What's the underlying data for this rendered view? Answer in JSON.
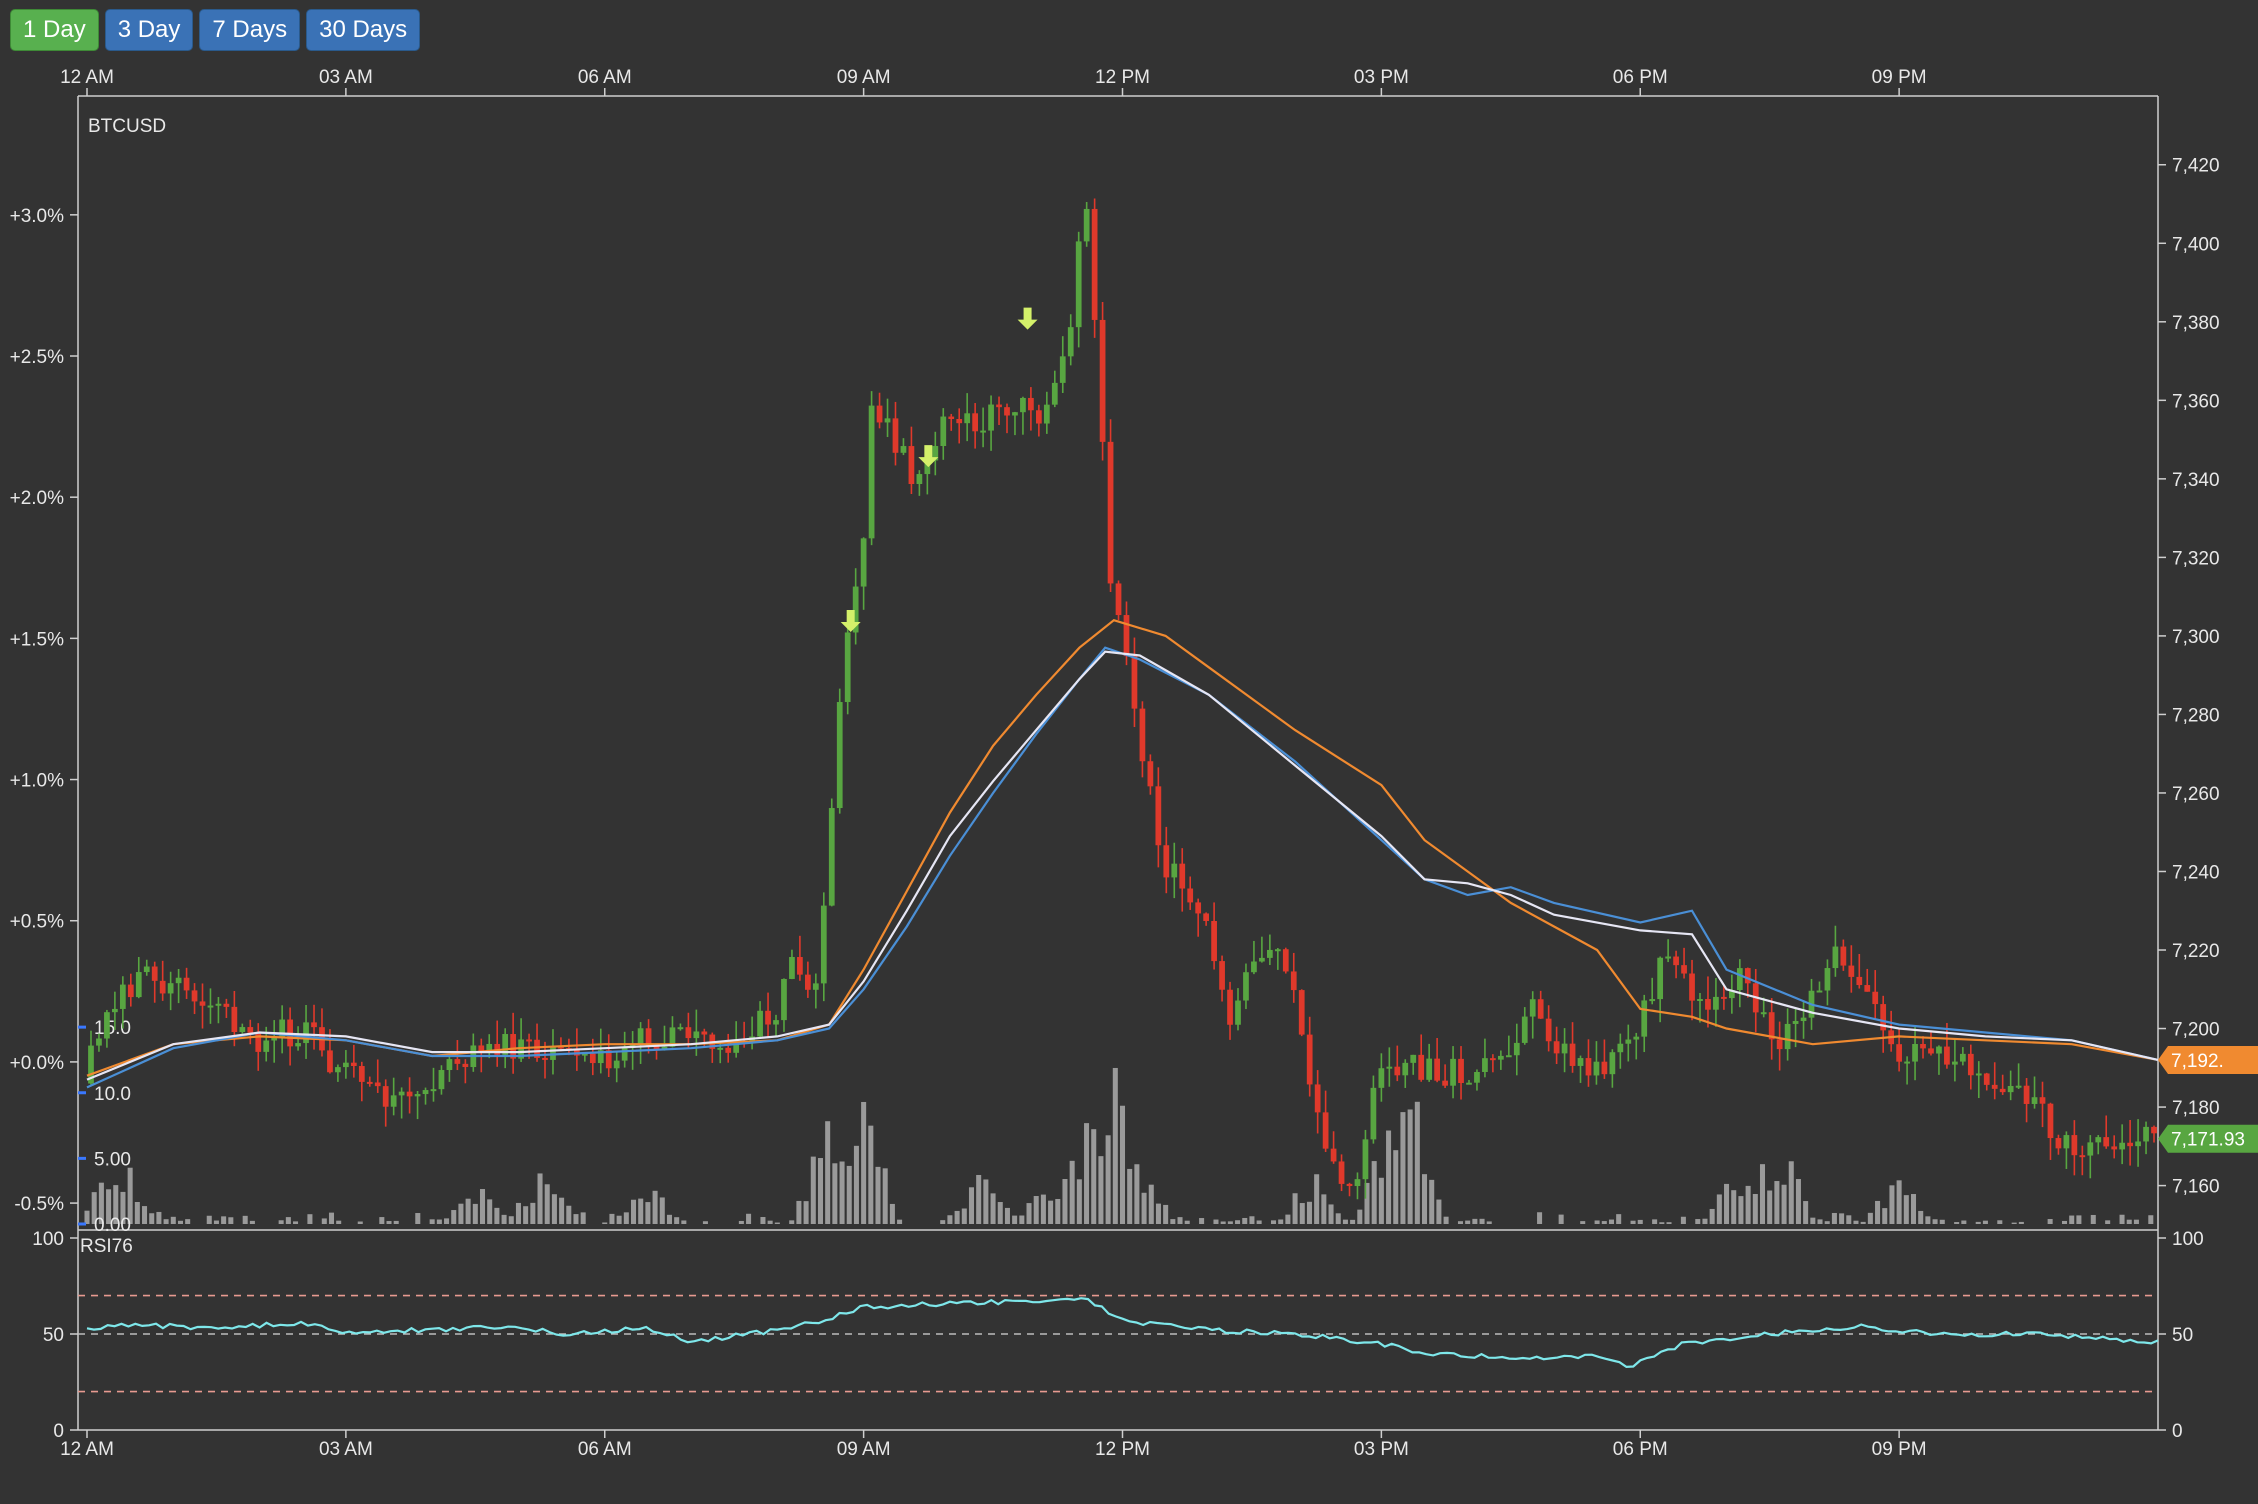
{
  "range_buttons": [
    {
      "label": "1 Day",
      "active": true
    },
    {
      "label": "3 Day",
      "active": false
    },
    {
      "label": "7 Days",
      "active": false
    },
    {
      "label": "30 Days",
      "active": false
    }
  ],
  "colors": {
    "background": "#333333",
    "up": "#58a641",
    "down": "#e0392b",
    "volume": "#9a9a9a",
    "ma_orange": "#f08a30",
    "ma_white": "#e6e6f4",
    "ma_blue": "#4a8fd6",
    "rsi_line": "#7ee7ea",
    "rsi_band": "#e79a90",
    "marker": "#d4f06a",
    "tag_orange": "#f08a30",
    "tag_green": "#58a641"
  },
  "chart_data": [
    {
      "type": "candlestick",
      "title": "BTCUSD",
      "x_ticks": [
        "12 AM",
        "03 AM",
        "06 AM",
        "09 AM",
        "12 PM",
        "03 PM",
        "06 PM",
        "09 PM"
      ],
      "x_range_hours": [
        0,
        24
      ],
      "y_right_ticks": [
        "7,160",
        "7,180",
        "7,200",
        "7,220",
        "7,240",
        "7,260",
        "7,280",
        "7,300",
        "7,320",
        "7,340",
        "7,360",
        "7,380",
        "7,400",
        "7,420"
      ],
      "y_left_ticks": [
        "-0.5%",
        "+0.0%",
        "+0.5%",
        "+1.0%",
        "+1.5%",
        "+2.0%",
        "+2.5%",
        "+3.0%"
      ],
      "y_right_range": [
        7152,
        7437
      ],
      "volume_ticks": [
        "0.00",
        "5.00",
        "10.0",
        "15.0"
      ],
      "volume_range": [
        0,
        16
      ],
      "price_tags": [
        {
          "label": "7,192.",
          "price": 7192,
          "color": "orange"
        },
        {
          "label": "7,171.93",
          "price": 7171.93,
          "color": "green"
        }
      ],
      "anchors": [
        {
          "t": 0.0,
          "p": 7186
        },
        {
          "t": 0.3,
          "p": 7206
        },
        {
          "t": 0.7,
          "p": 7214
        },
        {
          "t": 1.0,
          "p": 7212
        },
        {
          "t": 1.5,
          "p": 7207
        },
        {
          "t": 2.0,
          "p": 7197
        },
        {
          "t": 2.5,
          "p": 7200
        },
        {
          "t": 3.0,
          "p": 7190
        },
        {
          "t": 3.5,
          "p": 7184
        },
        {
          "t": 4.0,
          "p": 7185
        },
        {
          "t": 4.5,
          "p": 7193
        },
        {
          "t": 5.0,
          "p": 7196
        },
        {
          "t": 5.5,
          "p": 7192
        },
        {
          "t": 6.0,
          "p": 7193
        },
        {
          "t": 6.5,
          "p": 7197
        },
        {
          "t": 7.0,
          "p": 7199
        },
        {
          "t": 7.6,
          "p": 7197
        },
        {
          "t": 8.0,
          "p": 7203
        },
        {
          "t": 8.2,
          "p": 7215
        },
        {
          "t": 8.5,
          "p": 7208
        },
        {
          "t": 8.65,
          "p": 7248
        },
        {
          "t": 8.8,
          "p": 7296
        },
        {
          "t": 9.0,
          "p": 7313
        },
        {
          "t": 9.15,
          "p": 7360
        },
        {
          "t": 9.4,
          "p": 7351
        },
        {
          "t": 9.7,
          "p": 7338
        },
        {
          "t": 10.0,
          "p": 7358
        },
        {
          "t": 10.4,
          "p": 7355
        },
        {
          "t": 10.8,
          "p": 7360
        },
        {
          "t": 11.1,
          "p": 7355
        },
        {
          "t": 11.4,
          "p": 7372
        },
        {
          "t": 11.6,
          "p": 7417
        },
        {
          "t": 11.75,
          "p": 7372
        },
        {
          "t": 11.9,
          "p": 7317
        },
        {
          "t": 12.2,
          "p": 7283
        },
        {
          "t": 12.5,
          "p": 7239
        },
        {
          "t": 12.8,
          "p": 7237
        },
        {
          "t": 13.0,
          "p": 7230
        },
        {
          "t": 13.3,
          "p": 7199
        },
        {
          "t": 13.6,
          "p": 7222
        },
        {
          "t": 13.9,
          "p": 7218
        },
        {
          "t": 14.2,
          "p": 7190
        },
        {
          "t": 14.4,
          "p": 7168
        },
        {
          "t": 14.8,
          "p": 7159
        },
        {
          "t": 15.0,
          "p": 7188
        },
        {
          "t": 15.3,
          "p": 7193
        },
        {
          "t": 15.6,
          "p": 7190
        },
        {
          "t": 16.0,
          "p": 7188
        },
        {
          "t": 16.5,
          "p": 7195
        },
        {
          "t": 16.8,
          "p": 7207
        },
        {
          "t": 17.2,
          "p": 7193
        },
        {
          "t": 17.6,
          "p": 7189
        },
        {
          "t": 18.0,
          "p": 7198
        },
        {
          "t": 18.3,
          "p": 7217
        },
        {
          "t": 18.8,
          "p": 7205
        },
        {
          "t": 19.2,
          "p": 7214
        },
        {
          "t": 19.6,
          "p": 7196
        },
        {
          "t": 19.9,
          "p": 7203
        },
        {
          "t": 20.3,
          "p": 7218
        },
        {
          "t": 20.7,
          "p": 7208
        },
        {
          "t": 21.0,
          "p": 7190
        },
        {
          "t": 21.5,
          "p": 7195
        },
        {
          "t": 22.0,
          "p": 7190
        },
        {
          "t": 22.6,
          "p": 7180
        },
        {
          "t": 23.0,
          "p": 7170
        },
        {
          "t": 23.5,
          "p": 7171
        }
      ],
      "ma_white_points": [
        {
          "t": 0,
          "p": 7187
        },
        {
          "t": 1,
          "p": 7196
        },
        {
          "t": 2,
          "p": 7199
        },
        {
          "t": 3,
          "p": 7198
        },
        {
          "t": 4,
          "p": 7194
        },
        {
          "t": 5,
          "p": 7194
        },
        {
          "t": 6,
          "p": 7195
        },
        {
          "t": 7,
          "p": 7196
        },
        {
          "t": 8,
          "p": 7198
        },
        {
          "t": 8.6,
          "p": 7201
        },
        {
          "t": 9,
          "p": 7212
        },
        {
          "t": 9.5,
          "p": 7230
        },
        {
          "t": 10,
          "p": 7249
        },
        {
          "t": 10.5,
          "p": 7263
        },
        {
          "t": 11,
          "p": 7276
        },
        {
          "t": 11.5,
          "p": 7289
        },
        {
          "t": 11.8,
          "p": 7296
        },
        {
          "t": 12.2,
          "p": 7295
        },
        {
          "t": 13,
          "p": 7285
        },
        {
          "t": 14,
          "p": 7267
        },
        {
          "t": 15,
          "p": 7249
        },
        {
          "t": 15.5,
          "p": 7238
        },
        {
          "t": 16,
          "p": 7237
        },
        {
          "t": 16.5,
          "p": 7234
        },
        {
          "t": 17,
          "p": 7229
        },
        {
          "t": 18,
          "p": 7225
        },
        {
          "t": 18.6,
          "p": 7224
        },
        {
          "t": 19,
          "p": 7210
        },
        {
          "t": 20,
          "p": 7204
        },
        {
          "t": 21,
          "p": 7200
        },
        {
          "t": 22,
          "p": 7198
        },
        {
          "t": 23,
          "p": 7197
        },
        {
          "t": 24,
          "p": 7192
        }
      ],
      "ma_blue_points": [
        {
          "t": 0,
          "p": 7185
        },
        {
          "t": 1,
          "p": 7195
        },
        {
          "t": 2,
          "p": 7199
        },
        {
          "t": 3,
          "p": 7197
        },
        {
          "t": 4,
          "p": 7193
        },
        {
          "t": 5,
          "p": 7193
        },
        {
          "t": 6,
          "p": 7194
        },
        {
          "t": 7,
          "p": 7195
        },
        {
          "t": 8,
          "p": 7197
        },
        {
          "t": 8.6,
          "p": 7200
        },
        {
          "t": 9,
          "p": 7210
        },
        {
          "t": 9.5,
          "p": 7226
        },
        {
          "t": 10,
          "p": 7244
        },
        {
          "t": 10.5,
          "p": 7260
        },
        {
          "t": 11,
          "p": 7275
        },
        {
          "t": 11.5,
          "p": 7289
        },
        {
          "t": 11.8,
          "p": 7297
        },
        {
          "t": 12.2,
          "p": 7294
        },
        {
          "t": 13,
          "p": 7285
        },
        {
          "t": 14,
          "p": 7268
        },
        {
          "t": 15,
          "p": 7248
        },
        {
          "t": 15.5,
          "p": 7238
        },
        {
          "t": 16,
          "p": 7234
        },
        {
          "t": 16.5,
          "p": 7236
        },
        {
          "t": 17,
          "p": 7232
        },
        {
          "t": 18,
          "p": 7227
        },
        {
          "t": 18.6,
          "p": 7230
        },
        {
          "t": 19,
          "p": 7215
        },
        {
          "t": 20,
          "p": 7206
        },
        {
          "t": 21,
          "p": 7201
        },
        {
          "t": 22,
          "p": 7199
        },
        {
          "t": 23,
          "p": 7197
        },
        {
          "t": 24,
          "p": 7192
        }
      ],
      "ma_orange_points": [
        {
          "t": 0,
          "p": 7188
        },
        {
          "t": 1,
          "p": 7196
        },
        {
          "t": 2,
          "p": 7198
        },
        {
          "t": 3,
          "p": 7197
        },
        {
          "t": 4,
          "p": 7193
        },
        {
          "t": 5,
          "p": 7195
        },
        {
          "t": 6,
          "p": 7196
        },
        {
          "t": 7,
          "p": 7196
        },
        {
          "t": 8,
          "p": 7197
        },
        {
          "t": 8.6,
          "p": 7201
        },
        {
          "t": 9,
          "p": 7215
        },
        {
          "t": 9.5,
          "p": 7235
        },
        {
          "t": 10,
          "p": 7255
        },
        {
          "t": 10.5,
          "p": 7272
        },
        {
          "t": 11,
          "p": 7285
        },
        {
          "t": 11.5,
          "p": 7297
        },
        {
          "t": 11.9,
          "p": 7304
        },
        {
          "t": 12.5,
          "p": 7300
        },
        {
          "t": 13,
          "p": 7292
        },
        {
          "t": 14,
          "p": 7276
        },
        {
          "t": 15,
          "p": 7262
        },
        {
          "t": 15.5,
          "p": 7248
        },
        {
          "t": 16,
          "p": 7240
        },
        {
          "t": 16.5,
          "p": 7232
        },
        {
          "t": 17,
          "p": 7226
        },
        {
          "t": 17.5,
          "p": 7220
        },
        {
          "t": 18,
          "p": 7205
        },
        {
          "t": 18.6,
          "p": 7203
        },
        {
          "t": 19,
          "p": 7200
        },
        {
          "t": 20,
          "p": 7196
        },
        {
          "t": 21,
          "p": 7198
        },
        {
          "t": 22,
          "p": 7197
        },
        {
          "t": 23,
          "p": 7196
        },
        {
          "t": 24,
          "p": 7192
        }
      ],
      "volume_spikes": [
        {
          "t": 0.3,
          "v": 5
        },
        {
          "t": 0.5,
          "v": 4
        },
        {
          "t": 4.5,
          "v": 3
        },
        {
          "t": 5.3,
          "v": 5
        },
        {
          "t": 6.5,
          "v": 3
        },
        {
          "t": 8.6,
          "v": 8
        },
        {
          "t": 9.0,
          "v": 9
        },
        {
          "t": 10.4,
          "v": 4
        },
        {
          "t": 11.1,
          "v": 3
        },
        {
          "t": 11.6,
          "v": 9
        },
        {
          "t": 11.9,
          "v": 14
        },
        {
          "t": 12.2,
          "v": 4
        },
        {
          "t": 14.2,
          "v": 4
        },
        {
          "t": 15.1,
          "v": 9
        },
        {
          "t": 15.3,
          "v": 14
        },
        {
          "t": 19.1,
          "v": 4
        },
        {
          "t": 19.6,
          "v": 7
        },
        {
          "t": 21.0,
          "v": 4
        }
      ],
      "sell_markers": [
        {
          "t": 8.85,
          "p": 7301
        },
        {
          "t": 9.75,
          "p": 7343
        },
        {
          "t": 10.9,
          "p": 7378
        }
      ]
    },
    {
      "type": "line",
      "title": "RSI76",
      "y_ticks": [
        "0",
        "50",
        "100"
      ],
      "ylim": [
        0,
        100
      ],
      "bands": [
        20,
        50,
        70
      ],
      "points": [
        {
          "t": 0,
          "v": 52
        },
        {
          "t": 0.5,
          "v": 55
        },
        {
          "t": 1.5,
          "v": 53
        },
        {
          "t": 2.5,
          "v": 56
        },
        {
          "t": 3,
          "v": 51
        },
        {
          "t": 4,
          "v": 52
        },
        {
          "t": 5,
          "v": 54
        },
        {
          "t": 5.5,
          "v": 50
        },
        {
          "t": 6.5,
          "v": 53
        },
        {
          "t": 7,
          "v": 46
        },
        {
          "t": 8,
          "v": 52
        },
        {
          "t": 8.6,
          "v": 58
        },
        {
          "t": 9,
          "v": 64
        },
        {
          "t": 10,
          "v": 66
        },
        {
          "t": 11,
          "v": 67
        },
        {
          "t": 11.6,
          "v": 68
        },
        {
          "t": 12,
          "v": 57
        },
        {
          "t": 13,
          "v": 52
        },
        {
          "t": 14,
          "v": 50
        },
        {
          "t": 15,
          "v": 45
        },
        {
          "t": 15.5,
          "v": 40
        },
        {
          "t": 16.5,
          "v": 38
        },
        {
          "t": 17.5,
          "v": 38
        },
        {
          "t": 17.9,
          "v": 33
        },
        {
          "t": 18.5,
          "v": 45
        },
        {
          "t": 19.5,
          "v": 50
        },
        {
          "t": 20.5,
          "v": 54
        },
        {
          "t": 21.5,
          "v": 50
        },
        {
          "t": 22.5,
          "v": 50
        },
        {
          "t": 23.5,
          "v": 47
        },
        {
          "t": 24,
          "v": 46
        }
      ]
    }
  ]
}
